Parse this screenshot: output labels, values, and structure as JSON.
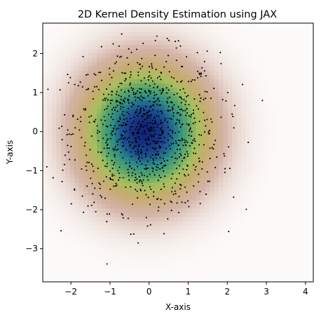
{
  "chart_data": {
    "type": "heatmap",
    "title": "2D Kernel Density Estimation using JAX",
    "xlabel": "X-axis",
    "ylabel": "Y-axis",
    "xlim": [
      -2.72,
      4.2
    ],
    "ylim": [
      -3.85,
      2.78
    ],
    "x_ticks": [
      -2,
      -1,
      0,
      1,
      2,
      3,
      4
    ],
    "y_ticks": [
      -3,
      -2,
      -1,
      0,
      1,
      2
    ],
    "x_tick_labels": [
      "−2",
      "−1",
      "0",
      "1",
      "2",
      "3",
      "4"
    ],
    "y_tick_labels": [
      "−3",
      "−2",
      "−1",
      "0",
      "1",
      "2"
    ],
    "grid": false,
    "colormap": "gist_earth_r",
    "density_model": {
      "center": [
        -0.1,
        0.0
      ],
      "sigma_x": 0.95,
      "sigma_y": 1.0
    },
    "scatter": {
      "marker_color": "#000000",
      "marker_size": 1.5,
      "count": 1000,
      "distribution": "approximately standard normal, centered near (0, 0)"
    },
    "colormap_stops": [
      "#fdfbfa",
      "#d3b3a6",
      "#c6ab6f",
      "#a8bf5d",
      "#5aa66a",
      "#2d8d85",
      "#1c4f90",
      "#12237a"
    ]
  }
}
